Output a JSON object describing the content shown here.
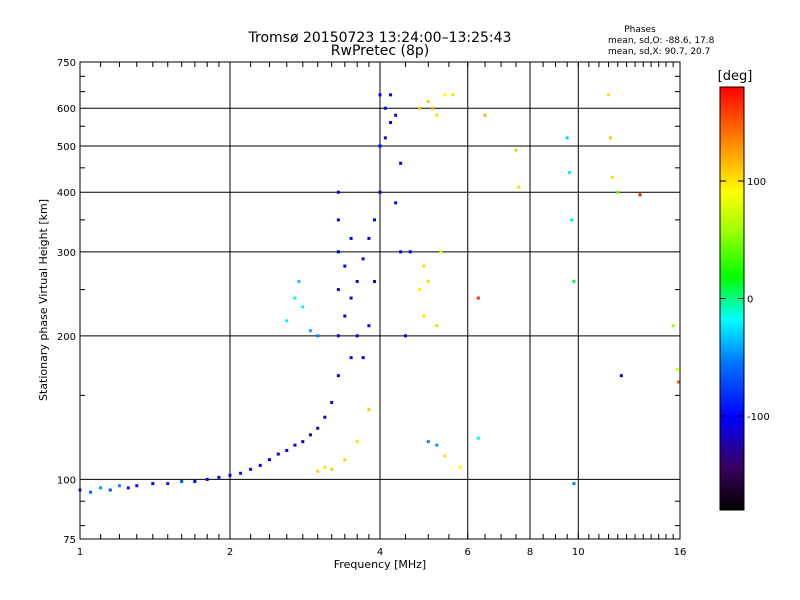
{
  "chart_data": {
    "type": "scatter",
    "title": "Tromsø 20150723 13:24:00–13:25:43",
    "subtitle": "RwPretec (8p)",
    "xlabel": "Frequency [MHz]",
    "ylabel": "Stationary phase Virtual Height [km]",
    "x_scale": "log2",
    "y_scale": "log",
    "xlim": [
      1,
      16
    ],
    "ylim": [
      75,
      750
    ],
    "x_ticks": [
      1,
      2,
      4,
      6,
      8,
      10,
      16
    ],
    "x_tick_labels": [
      "1",
      "2",
      "4",
      "6",
      "8",
      "10",
      "16"
    ],
    "y_ticks": [
      75,
      100,
      200,
      300,
      400,
      500,
      600,
      750
    ],
    "y_tick_labels": [
      "75",
      "100",
      "200",
      "300",
      "400",
      "500",
      "600",
      "750"
    ],
    "grid": true,
    "stats": {
      "header": "Phases",
      "line1": "mean, sd,O: -88.6, 17.8",
      "line2": "mean, sd,X: 90.7, 20.7"
    },
    "colorbar": {
      "label": "[deg]",
      "range": [
        -180,
        180
      ],
      "ticks": [
        100,
        0,
        -100
      ],
      "tick_labels": [
        "100",
        "0",
        "-100"
      ]
    },
    "series": [
      {
        "points": [
          [
            1.0,
            95,
            -80
          ],
          [
            1.05,
            94,
            -60
          ],
          [
            1.1,
            96,
            -45
          ],
          [
            1.15,
            95,
            -70
          ],
          [
            1.2,
            97,
            -50
          ],
          [
            1.25,
            96,
            -90
          ],
          [
            1.3,
            97,
            -95
          ],
          [
            1.4,
            98,
            -100
          ],
          [
            1.5,
            98,
            -90
          ],
          [
            1.6,
            99,
            -70
          ],
          [
            1.7,
            99,
            -100
          ],
          [
            1.8,
            100,
            -110
          ],
          [
            1.9,
            101,
            -100
          ],
          [
            2.0,
            102,
            -105
          ],
          [
            2.1,
            103,
            -95
          ],
          [
            2.2,
            105,
            -100
          ],
          [
            2.3,
            107,
            -110
          ],
          [
            2.4,
            110,
            -100
          ],
          [
            2.5,
            113,
            -110
          ],
          [
            2.6,
            115,
            -105
          ],
          [
            2.7,
            118,
            -100
          ],
          [
            2.8,
            120,
            -110
          ],
          [
            2.9,
            124,
            -120
          ],
          [
            3.0,
            128,
            -110
          ],
          [
            3.1,
            135,
            -110
          ],
          [
            3.2,
            145,
            -110
          ],
          [
            3.3,
            165,
            -110
          ],
          [
            3.3,
            200,
            -100
          ],
          [
            3.3,
            250,
            -110
          ],
          [
            3.3,
            300,
            -105
          ],
          [
            3.3,
            350,
            -110
          ],
          [
            3.3,
            400,
            -100
          ],
          [
            3.4,
            220,
            -110
          ],
          [
            3.4,
            280,
            -100
          ],
          [
            3.5,
            180,
            -105
          ],
          [
            3.5,
            240,
            -110
          ],
          [
            3.5,
            320,
            -100
          ],
          [
            3.6,
            200,
            -110
          ],
          [
            3.6,
            260,
            -105
          ],
          [
            3.7,
            180,
            -110
          ],
          [
            3.7,
            290,
            -100
          ],
          [
            3.8,
            210,
            -105
          ],
          [
            3.8,
            320,
            -110
          ],
          [
            3.9,
            260,
            -110
          ],
          [
            3.9,
            350,
            -100
          ],
          [
            4.0,
            400,
            -110
          ],
          [
            4.0,
            500,
            -100
          ],
          [
            4.0,
            640,
            -105
          ],
          [
            4.1,
            520,
            -110
          ],
          [
            4.1,
            600,
            -100
          ],
          [
            4.2,
            560,
            -110
          ],
          [
            4.2,
            640,
            -105
          ],
          [
            4.3,
            580,
            -110
          ],
          [
            4.3,
            380,
            -100
          ],
          [
            4.4,
            300,
            -105
          ],
          [
            4.4,
            460,
            -100
          ],
          [
            4.5,
            200,
            -110
          ],
          [
            4.6,
            300,
            -100
          ],
          [
            4.8,
            250,
            95
          ],
          [
            4.9,
            280,
            105
          ],
          [
            5.0,
            260,
            100
          ],
          [
            5.0,
            620,
            110
          ],
          [
            5.1,
            600,
            120
          ],
          [
            5.2,
            580,
            100
          ],
          [
            5.3,
            300,
            80
          ],
          [
            5.4,
            640,
            90
          ],
          [
            5.6,
            640,
            100
          ],
          [
            4.8,
            600,
            115
          ],
          [
            4.9,
            220,
            100
          ],
          [
            5.2,
            210,
            105
          ],
          [
            2.6,
            215,
            -20
          ],
          [
            2.7,
            240,
            -10
          ],
          [
            2.75,
            260,
            -30
          ],
          [
            2.8,
            230,
            -20
          ],
          [
            2.9,
            205,
            -40
          ],
          [
            3.0,
            200,
            -50
          ],
          [
            3.0,
            104,
            105
          ],
          [
            3.1,
            106,
            100
          ],
          [
            3.2,
            105,
            110
          ],
          [
            3.4,
            110,
            105
          ],
          [
            3.6,
            120,
            100
          ],
          [
            3.8,
            140,
            110
          ],
          [
            5.0,
            120,
            -50
          ],
          [
            5.2,
            118,
            -45
          ],
          [
            5.4,
            112,
            100
          ],
          [
            5.8,
            106,
            90
          ],
          [
            6.3,
            240,
            165
          ],
          [
            6.3,
            122,
            -20
          ],
          [
            7.5,
            490,
            110
          ],
          [
            7.6,
            410,
            105
          ],
          [
            9.5,
            520,
            -30
          ],
          [
            9.6,
            440,
            -20
          ],
          [
            9.7,
            350,
            -10
          ],
          [
            9.8,
            260,
            10
          ],
          [
            11.5,
            640,
            100
          ],
          [
            11.6,
            520,
            110
          ],
          [
            11.7,
            430,
            100
          ],
          [
            12.0,
            400,
            40
          ],
          [
            13.3,
            395,
            170
          ],
          [
            12.2,
            165,
            -110
          ],
          [
            15.5,
            210,
            60
          ],
          [
            15.8,
            170,
            80
          ],
          [
            15.9,
            160,
            150
          ],
          [
            9.8,
            98,
            -50
          ],
          [
            6.5,
            580,
            120
          ]
        ]
      }
    ]
  }
}
